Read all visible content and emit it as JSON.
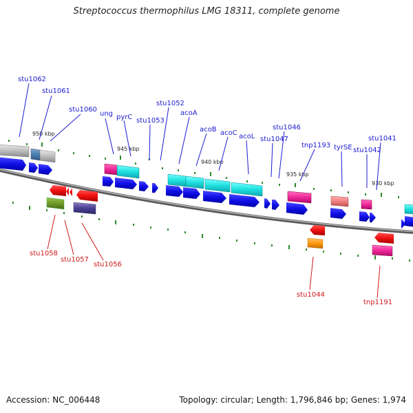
{
  "title": "Streptococcus thermophilus LMG 18311, complete genome",
  "footer": {
    "accession": "Accession: NC_006448",
    "summary": "Topology: circular; Length: 1,796,846 bp; Genes: 1,974"
  },
  "colors": {
    "forward_label": "#1a1ad0",
    "reverse_label": "#d01818",
    "tick": "#2a8a2a",
    "backbone": "#888888"
  },
  "kbp_labels": [
    "950 kbp",
    "945 kbp",
    "940 kbp",
    "935 kbp",
    "930 kbp"
  ],
  "forward_labels": [
    "stu1062",
    "stu1061",
    "stu1060",
    "ung",
    "pyrC",
    "stu1053",
    "stu1052",
    "acoA",
    "acoB",
    "acoC",
    "acoL",
    "stu1047",
    "stu1046",
    "tnp1193",
    "tyrSE",
    "stu1042",
    "stu1041"
  ],
  "reverse_labels": [
    "stu1058",
    "stu1057",
    "stu1056",
    "stu1044",
    "tnp1191"
  ]
}
